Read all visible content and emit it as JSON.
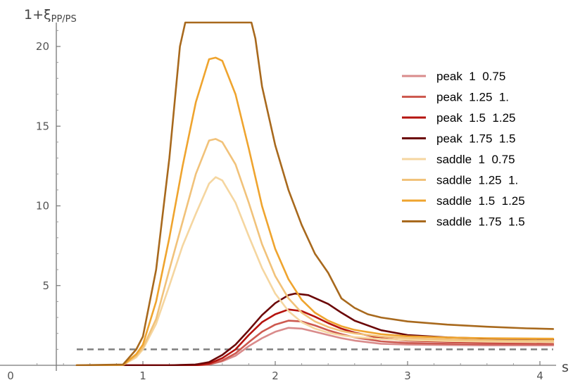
{
  "chart_data": {
    "type": "line",
    "ylabel_main": "1+ξ",
    "ylabel_sub": "PP/PS",
    "xlabel": "s",
    "xlim": [
      0,
      4.1
    ],
    "ylim": [
      0,
      21
    ],
    "xticks": [
      0,
      1,
      2,
      3,
      4
    ],
    "yticks": [
      5,
      10,
      15,
      20
    ],
    "grid": false,
    "legend_position": "top-right",
    "reference_line": {
      "y": 1,
      "style": "dashed",
      "color": "#808080"
    },
    "series": [
      {
        "name": "peak  1  0.75",
        "color": "#d98b8b",
        "points": [
          [
            0.5,
            0
          ],
          [
            0.85,
            0
          ],
          [
            1.0,
            0
          ],
          [
            1.2,
            0
          ],
          [
            1.4,
            0
          ],
          [
            1.5,
            0.05
          ],
          [
            1.6,
            0.25
          ],
          [
            1.7,
            0.6
          ],
          [
            1.8,
            1.2
          ],
          [
            1.9,
            1.7
          ],
          [
            2.0,
            2.1
          ],
          [
            2.1,
            2.35
          ],
          [
            2.2,
            2.3
          ],
          [
            2.3,
            2.1
          ],
          [
            2.4,
            1.9
          ],
          [
            2.5,
            1.7
          ],
          [
            2.6,
            1.55
          ],
          [
            2.8,
            1.35
          ],
          [
            3.0,
            1.3
          ],
          [
            3.3,
            1.27
          ],
          [
            3.6,
            1.25
          ],
          [
            3.9,
            1.25
          ],
          [
            4.1,
            1.25
          ]
        ]
      },
      {
        "name": "peak  1.25  1.",
        "color": "#cd5a50",
        "points": [
          [
            0.5,
            0
          ],
          [
            0.85,
            0
          ],
          [
            1.0,
            0
          ],
          [
            1.2,
            0
          ],
          [
            1.4,
            0
          ],
          [
            1.5,
            0.05
          ],
          [
            1.6,
            0.3
          ],
          [
            1.7,
            0.75
          ],
          [
            1.8,
            1.45
          ],
          [
            1.9,
            2.1
          ],
          [
            2.0,
            2.55
          ],
          [
            2.1,
            2.8
          ],
          [
            2.2,
            2.75
          ],
          [
            2.3,
            2.5
          ],
          [
            2.4,
            2.2
          ],
          [
            2.5,
            1.95
          ],
          [
            2.6,
            1.75
          ],
          [
            2.8,
            1.5
          ],
          [
            3.0,
            1.4
          ],
          [
            3.3,
            1.35
          ],
          [
            3.6,
            1.33
          ],
          [
            3.9,
            1.33
          ],
          [
            4.1,
            1.33
          ]
        ]
      },
      {
        "name": "peak  1.5  1.25",
        "color": "#b5130e",
        "points": [
          [
            0.5,
            0
          ],
          [
            0.85,
            0
          ],
          [
            1.0,
            0
          ],
          [
            1.2,
            0
          ],
          [
            1.4,
            0
          ],
          [
            1.5,
            0.1
          ],
          [
            1.6,
            0.45
          ],
          [
            1.7,
            1.0
          ],
          [
            1.8,
            1.9
          ],
          [
            1.9,
            2.7
          ],
          [
            2.0,
            3.2
          ],
          [
            2.1,
            3.5
          ],
          [
            2.2,
            3.4
          ],
          [
            2.3,
            3.05
          ],
          [
            2.4,
            2.65
          ],
          [
            2.5,
            2.3
          ],
          [
            2.6,
            2.05
          ],
          [
            2.8,
            1.7
          ],
          [
            3.0,
            1.55
          ],
          [
            3.3,
            1.48
          ],
          [
            3.6,
            1.45
          ],
          [
            3.9,
            1.44
          ],
          [
            4.1,
            1.44
          ]
        ]
      },
      {
        "name": "peak  1.75  1.5",
        "color": "#6b0606",
        "points": [
          [
            0.5,
            0
          ],
          [
            0.85,
            0
          ],
          [
            1.0,
            0
          ],
          [
            1.2,
            0
          ],
          [
            1.4,
            0.05
          ],
          [
            1.5,
            0.2
          ],
          [
            1.6,
            0.65
          ],
          [
            1.7,
            1.3
          ],
          [
            1.8,
            2.2
          ],
          [
            1.9,
            3.15
          ],
          [
            2.0,
            3.9
          ],
          [
            2.1,
            4.4
          ],
          [
            2.15,
            4.5
          ],
          [
            2.25,
            4.4
          ],
          [
            2.4,
            3.85
          ],
          [
            2.5,
            3.3
          ],
          [
            2.6,
            2.8
          ],
          [
            2.8,
            2.2
          ],
          [
            3.0,
            1.9
          ],
          [
            3.3,
            1.75
          ],
          [
            3.6,
            1.68
          ],
          [
            3.9,
            1.64
          ],
          [
            4.1,
            1.62
          ]
        ]
      },
      {
        "name": "saddle  1  0.75",
        "color": "#f5d6a0",
        "points": [
          [
            0.5,
            0
          ],
          [
            0.85,
            0.02
          ],
          [
            0.95,
            0.5
          ],
          [
            1.0,
            1.0
          ],
          [
            1.1,
            2.6
          ],
          [
            1.2,
            5.0
          ],
          [
            1.3,
            7.5
          ],
          [
            1.4,
            9.5
          ],
          [
            1.5,
            11.4
          ],
          [
            1.55,
            11.8
          ],
          [
            1.6,
            11.6
          ],
          [
            1.7,
            10.2
          ],
          [
            1.8,
            8.1
          ],
          [
            1.9,
            6.1
          ],
          [
            2.0,
            4.5
          ],
          [
            2.1,
            3.4
          ],
          [
            2.2,
            2.7
          ],
          [
            2.3,
            2.3
          ],
          [
            2.4,
            2.05
          ],
          [
            2.5,
            1.88
          ],
          [
            2.6,
            1.77
          ],
          [
            2.8,
            1.65
          ],
          [
            3.0,
            1.58
          ],
          [
            3.3,
            1.52
          ],
          [
            3.6,
            1.48
          ],
          [
            3.9,
            1.46
          ],
          [
            4.1,
            1.45
          ]
        ]
      },
      {
        "name": "saddle  1.25  1.",
        "color": "#f1c27a",
        "points": [
          [
            0.5,
            0
          ],
          [
            0.85,
            0.02
          ],
          [
            0.95,
            0.6
          ],
          [
            1.0,
            1.1
          ],
          [
            1.1,
            2.9
          ],
          [
            1.2,
            6.0
          ],
          [
            1.3,
            9.0
          ],
          [
            1.4,
            12.0
          ],
          [
            1.5,
            14.1
          ],
          [
            1.55,
            14.2
          ],
          [
            1.6,
            14.0
          ],
          [
            1.7,
            12.6
          ],
          [
            1.8,
            10.2
          ],
          [
            1.9,
            7.6
          ],
          [
            2.0,
            5.6
          ],
          [
            2.1,
            4.2
          ],
          [
            2.2,
            3.3
          ],
          [
            2.3,
            2.75
          ],
          [
            2.4,
            2.4
          ],
          [
            2.5,
            2.15
          ],
          [
            2.6,
            2.0
          ],
          [
            2.8,
            1.8
          ],
          [
            3.0,
            1.7
          ],
          [
            3.3,
            1.62
          ],
          [
            3.6,
            1.57
          ],
          [
            3.9,
            1.55
          ],
          [
            4.1,
            1.54
          ]
        ]
      },
      {
        "name": "saddle  1.5  1.25",
        "color": "#efa42e",
        "points": [
          [
            0.5,
            0
          ],
          [
            0.85,
            0.02
          ],
          [
            0.95,
            0.7
          ],
          [
            1.0,
            1.3
          ],
          [
            1.1,
            4.0
          ],
          [
            1.2,
            8.0
          ],
          [
            1.3,
            12.5
          ],
          [
            1.4,
            16.5
          ],
          [
            1.5,
            19.2
          ],
          [
            1.55,
            19.3
          ],
          [
            1.6,
            19.1
          ],
          [
            1.7,
            17.0
          ],
          [
            1.8,
            13.6
          ],
          [
            1.9,
            10.0
          ],
          [
            2.0,
            7.3
          ],
          [
            2.1,
            5.4
          ],
          [
            2.2,
            4.1
          ],
          [
            2.3,
            3.3
          ],
          [
            2.4,
            2.8
          ],
          [
            2.5,
            2.45
          ],
          [
            2.6,
            2.22
          ],
          [
            2.8,
            1.95
          ],
          [
            3.0,
            1.82
          ],
          [
            3.3,
            1.74
          ],
          [
            3.6,
            1.7
          ],
          [
            3.9,
            1.68
          ],
          [
            4.1,
            1.67
          ]
        ]
      },
      {
        "name": "saddle  1.75  1.5",
        "color": "#a8691d",
        "points": [
          [
            0.5,
            0
          ],
          [
            0.85,
            0.05
          ],
          [
            0.95,
            1.0
          ],
          [
            1.0,
            1.8
          ],
          [
            1.1,
            6.0
          ],
          [
            1.2,
            13.0
          ],
          [
            1.28,
            20.0
          ],
          [
            1.32,
            21.5
          ],
          [
            1.82,
            21.5
          ],
          [
            1.85,
            20.5
          ],
          [
            1.9,
            17.5
          ],
          [
            2.0,
            13.8
          ],
          [
            2.1,
            11.0
          ],
          [
            2.2,
            8.8
          ],
          [
            2.3,
            7.0
          ],
          [
            2.4,
            5.8
          ],
          [
            2.5,
            4.2
          ],
          [
            2.6,
            3.6
          ],
          [
            2.7,
            3.2
          ],
          [
            2.8,
            3.0
          ],
          [
            3.0,
            2.75
          ],
          [
            3.3,
            2.55
          ],
          [
            3.6,
            2.42
          ],
          [
            3.9,
            2.32
          ],
          [
            4.1,
            2.28
          ]
        ]
      }
    ]
  }
}
